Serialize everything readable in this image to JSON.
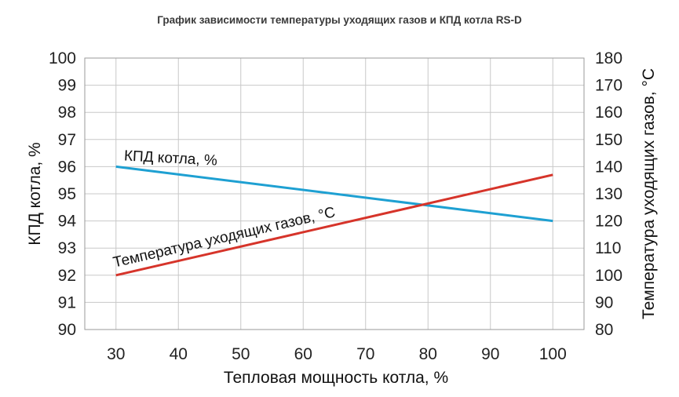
{
  "chart_data": {
    "type": "line",
    "title": "График зависимости температуры уходящих газов и КПД котла RS-D",
    "xlabel": "Тепловая мощность котла, %",
    "ylabel_left": "КПД котла, %",
    "ylabel_right": "Температура уходящих газов, °С",
    "x_ticks": [
      30,
      40,
      50,
      60,
      70,
      80,
      90,
      100
    ],
    "xlim": [
      25,
      105
    ],
    "ylim_left": [
      90,
      100
    ],
    "yticks_left": [
      90,
      91,
      92,
      93,
      94,
      95,
      96,
      97,
      98,
      99,
      100
    ],
    "ylim_right": [
      80,
      180
    ],
    "yticks_right": [
      80,
      90,
      100,
      110,
      120,
      130,
      140,
      150,
      160,
      170,
      180
    ],
    "grid": true,
    "series": [
      {
        "name": "КПД котла, %",
        "axis": "left",
        "color": "#1ea0d2",
        "x": [
          30,
          100
        ],
        "y": [
          96,
          94
        ]
      },
      {
        "name": "Температура уходящих газов, °С",
        "axis": "right",
        "color": "#d6342a",
        "x": [
          30,
          100
        ],
        "y": [
          100,
          137
        ]
      }
    ]
  }
}
